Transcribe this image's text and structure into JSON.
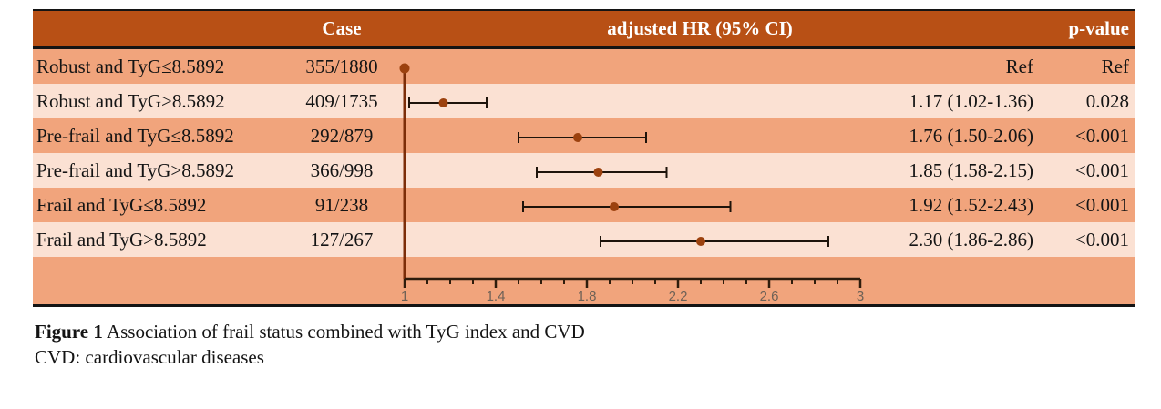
{
  "table": {
    "headers": {
      "case": "Case",
      "hr": "adjusted HR (95% CI)",
      "pvalue": "p-value"
    },
    "rows": [
      {
        "label": "Robust and TyG≤8.5892",
        "case": "355/1880",
        "hr_text": "Ref",
        "p": "Ref"
      },
      {
        "label": "Robust and TyG>8.5892",
        "case": "409/1735",
        "hr_text": "1.17 (1.02-1.36)",
        "p": "0.028"
      },
      {
        "label": "Pre-frail and TyG≤8.5892",
        "case": "292/879",
        "hr_text": "1.76 (1.50-2.06)",
        "p": "<0.001"
      },
      {
        "label": "Pre-frail and TyG>8.5892",
        "case": "366/998",
        "hr_text": "1.85 (1.58-2.15)",
        "p": "<0.001"
      },
      {
        "label": "Frail and TyG≤8.5892",
        "case": "91/238",
        "hr_text": "1.92 (1.52-2.43)",
        "p": "<0.001"
      },
      {
        "label": "Frail and TyG>8.5892",
        "case": "127/267",
        "hr_text": "2.30 (1.86-2.86)",
        "p": "<0.001"
      }
    ]
  },
  "chart_data": {
    "type": "forest",
    "title": "Association of frail status combined with TyG index and CVD",
    "xlabel": "adjusted HR (95% CI)",
    "axis": {
      "min": 1,
      "max": 3,
      "major_ticks": [
        1,
        1.4,
        1.8,
        2.2,
        2.6,
        3
      ],
      "minor_step": 0.1,
      "reference_line": 1
    },
    "points": [
      {
        "label": "Robust and TyG≤8.5892",
        "hr": 1.0,
        "lo": null,
        "hi": null,
        "ref": true
      },
      {
        "label": "Robust and TyG>8.5892",
        "hr": 1.17,
        "lo": 1.02,
        "hi": 1.36,
        "ref": false
      },
      {
        "label": "Pre-frail and TyG≤8.5892",
        "hr": 1.76,
        "lo": 1.5,
        "hi": 2.06,
        "ref": false
      },
      {
        "label": "Pre-frail and TyG>8.5892",
        "hr": 1.85,
        "lo": 1.58,
        "hi": 2.15,
        "ref": false
      },
      {
        "label": "Frail and TyG≤8.5892",
        "hr": 1.92,
        "lo": 1.52,
        "hi": 2.43,
        "ref": false
      },
      {
        "label": "Frail and TyG>8.5892",
        "hr": 2.3,
        "lo": 1.86,
        "hi": 2.86,
        "ref": false
      }
    ]
  },
  "caption": {
    "bold": "Figure 1",
    "rest": " Association of frail status combined with TyG index and CVD",
    "line2": "CVD: cardiovascular diseases"
  },
  "colors": {
    "header_bg": "#b85015",
    "row_dark": "#f1a47c",
    "row_light": "#fbe1d3",
    "header_text": "#ffffff",
    "whisker": "#1e130a",
    "dot": "#9c410e",
    "reference_line": "#7c2d08",
    "axis_line": "#2e1c0c",
    "tick_label": "#6e6156"
  }
}
